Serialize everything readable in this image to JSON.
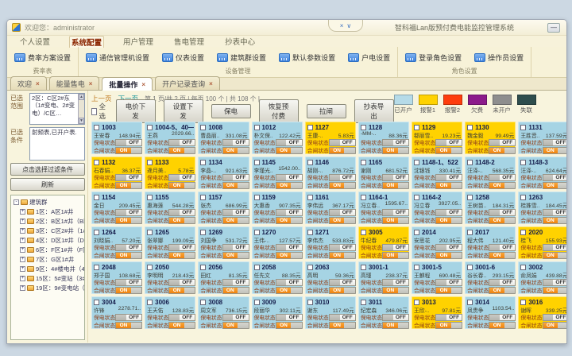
{
  "window": {
    "welcome": "欢迎您：administrator",
    "title": "智科福Lan版预付费电能监控管理系统",
    "minimize": "—",
    "dock_glyphs": [
      "×",
      "∨"
    ]
  },
  "menu": {
    "items": [
      "个人设置",
      "系统配置",
      "用户管理",
      "售电管理",
      "抄表中心"
    ],
    "active_index": 1
  },
  "ribbon": {
    "groups": [
      {
        "label": "费率表",
        "buttons": [
          "费率方案设置"
        ]
      },
      {
        "label": "设备管理",
        "buttons": [
          "通信管理机设置",
          "仪表设置",
          "建筑群设置",
          "默认参数设置",
          "户电设置"
        ]
      },
      {
        "label": "角色设置",
        "buttons": [
          "登录角色设置",
          "操作员设置"
        ]
      }
    ]
  },
  "tabs": {
    "close_glyph": "×",
    "items": [
      {
        "label": "欢迎",
        "active": false
      },
      {
        "label": "能量售电",
        "active": false
      },
      {
        "label": "批量操作",
        "active": true
      },
      {
        "label": "开户记录查询",
        "active": false
      }
    ]
  },
  "sidebar": {
    "range_label": "已选范围",
    "range_text": "2区：C区2#东（1#变电、2#变电）/C区…",
    "condition_label": "已选条件",
    "condition_text": "射频表,已开户表.",
    "filter_button": "点击选择过滤条件",
    "refresh_button": "刷新",
    "scroll_up": "▲",
    "scroll_down": "▼",
    "tree": {
      "root": "建筑群",
      "items": [
        "1区：A区1#井",
        "2区：B区1#井（B区1#…",
        "3区：C区2#井（1#变…",
        "4区：D区1#井（D区1…",
        "6区：F区1#井（F区1#…",
        "7区：G区1#井",
        "9区：4#楼电井（4#楼…",
        "15区：5#变站（3#变…",
        "19区：9#变电站（2#…"
      ]
    }
  },
  "toolbar": {
    "prev": "上一页",
    "next": "下一页",
    "page_info": "第 1 页/共 2 页 | 每页 100 个 | 共 108 个 |",
    "select_all": "全选",
    "buttons": [
      "电价下发",
      "设置下发",
      "保电",
      "恢复预付费",
      "拉闸",
      "抄表导出"
    ]
  },
  "legend": {
    "items": [
      {
        "label": "已开户",
        "color": "#b6dbe8"
      },
      {
        "label": "报警1",
        "color": "#ffd200"
      },
      {
        "label": "报警2",
        "color": "#fe3d0d"
      },
      {
        "label": "欠费",
        "color": "#8b1a8b"
      },
      {
        "label": "未开户",
        "color": "#8e8e8e"
      },
      {
        "label": "失联",
        "color": "#2e4d4d"
      }
    ]
  },
  "card_labels": {
    "keep_power": "保电状态",
    "switch_state": "合闸状态",
    "on": "ON",
    "off": "OFF"
  },
  "status_colors": {
    "open": "#a6d4e4",
    "alarm1": "#ffd200"
  },
  "cards": [
    {
      "room": "1003",
      "name": "王安春",
      "amount": "148.94元",
      "status": "open"
    },
    {
      "room": "1004-5、40—",
      "name": "王燕",
      "amount": "2029.66..",
      "status": "open"
    },
    {
      "room": "1008",
      "name": "曹晶丽..",
      "amount": "331.08元",
      "status": "open"
    },
    {
      "room": "1012",
      "name": "朴文保..",
      "amount": "122.42元",
      "status": "open"
    },
    {
      "room": "1127",
      "name": "王康-..",
      "amount": "5.83元",
      "status": "alarm1"
    },
    {
      "room": "1128",
      "name": "-MM-..",
      "amount": "88.36元",
      "status": "open"
    },
    {
      "room": "1129",
      "name": "郗丽雪..",
      "amount": "19.23元",
      "status": "alarm1"
    },
    {
      "room": "1130",
      "name": "魏金毅",
      "amount": "99.49元",
      "status": "alarm1"
    },
    {
      "room": "1131",
      "name": "王胜音..",
      "amount": "137.59元",
      "status": "open"
    },
    {
      "room": "1132",
      "name": "石春娟..",
      "amount": "36.37元",
      "status": "alarm1"
    },
    {
      "room": "1133",
      "name": "逄月美..",
      "amount": "5.78元",
      "status": "alarm1"
    },
    {
      "room": "1134",
      "name": "李晶-..",
      "amount": "921.63元",
      "status": "open"
    },
    {
      "room": "1145",
      "name": "李瑾光..",
      "amount": "1542.00..",
      "status": "open"
    },
    {
      "room": "1146",
      "name": "胡刚-..",
      "amount": "876.72元",
      "status": "open"
    },
    {
      "room": "1165",
      "name": "谢刚",
      "amount": "681.52元",
      "status": "open"
    },
    {
      "room": "1148-1、522",
      "name": "沈银钱",
      "amount": "330.41元",
      "status": "open"
    },
    {
      "room": "1148-2",
      "name": "汪泽-..",
      "amount": "568.35元",
      "status": "open"
    },
    {
      "room": "1148-3",
      "name": "汪泽-..",
      "amount": "624.64元",
      "status": "open"
    },
    {
      "room": "1154",
      "name": "金日",
      "amount": "209.45元",
      "status": "open"
    },
    {
      "room": "1155",
      "name": "惠海莲",
      "amount": "544.28元",
      "status": "open"
    },
    {
      "room": "1157",
      "name": "张杰",
      "amount": "686.99元",
      "status": "open"
    },
    {
      "room": "1159",
      "name": "大惠香",
      "amount": "907.35元",
      "status": "open"
    },
    {
      "room": "1161",
      "name": "李伟远",
      "amount": "367.17元",
      "status": "open"
    },
    {
      "room": "1164-1",
      "name": "冯立春..",
      "amount": "1595.67..",
      "status": "open"
    },
    {
      "room": "1164-2",
      "name": "冯立春",
      "amount": "3927.05..",
      "status": "open"
    },
    {
      "room": "1258",
      "name": "王树苗..",
      "amount": "184.31元",
      "status": "open"
    },
    {
      "room": "1263",
      "name": "桂姝雪..",
      "amount": "184.45元",
      "status": "open"
    },
    {
      "room": "1264",
      "name": "刘晓娟..",
      "amount": "57.20元",
      "status": "open"
    },
    {
      "room": "1265",
      "name": "张翠娜",
      "amount": "199.09元",
      "status": "open"
    },
    {
      "room": "1269",
      "name": "刘国争",
      "amount": "531.72元",
      "status": "open"
    },
    {
      "room": "1270",
      "name": "王伟-..",
      "amount": "127.57元",
      "status": "open"
    },
    {
      "room": "1271",
      "name": "李伟杰",
      "amount": "533.83元",
      "status": "open"
    },
    {
      "room": "3005",
      "name": "牛纪春",
      "amount": "479.87元",
      "status": "alarm1"
    },
    {
      "room": "2014",
      "name": "安思花",
      "amount": "202.95元",
      "status": "open"
    },
    {
      "room": "2017",
      "name": "程大伟",
      "amount": "121.40元",
      "status": "open"
    },
    {
      "room": "2020",
      "name": "桂飞",
      "amount": "155.93元",
      "status": "alarm1"
    },
    {
      "room": "2048",
      "name": "郑子国",
      "amount": "108.68元",
      "status": "open"
    },
    {
      "room": "2050",
      "name": "李明明",
      "amount": "218.43元",
      "status": "open"
    },
    {
      "room": "2056",
      "name": "田红",
      "amount": "81.35元",
      "status": "open"
    },
    {
      "room": "2058",
      "name": "任先文",
      "amount": "88.35元",
      "status": "open"
    },
    {
      "room": "2063",
      "name": "高明",
      "amount": "59.36元",
      "status": "open"
    },
    {
      "room": "3001-1",
      "name": "高瑾",
      "amount": "238.37元",
      "status": "open"
    },
    {
      "room": "3001-5",
      "name": "王麒程",
      "amount": "690.48元",
      "status": "open"
    },
    {
      "room": "3001-6",
      "name": "谷长春..",
      "amount": "293.15元",
      "status": "open"
    },
    {
      "room": "3002",
      "name": "俞凤娟",
      "amount": "439.88元",
      "status": "open"
    },
    {
      "room": "3004",
      "name": "许锋",
      "amount": "2278.71..",
      "status": "open"
    },
    {
      "room": "3006",
      "name": "王天佑",
      "amount": "128.83元",
      "status": "open"
    },
    {
      "room": "3008",
      "name": "周文军",
      "amount": "736.15元",
      "status": "open"
    },
    {
      "room": "3009",
      "name": "段丽华",
      "amount": "302.11元",
      "status": "open"
    },
    {
      "room": "3010",
      "name": "谢东",
      "amount": "117.49元",
      "status": "open"
    },
    {
      "room": "3011",
      "name": "纪宏森",
      "amount": "346.06元",
      "status": "open"
    },
    {
      "room": "3013",
      "name": "王欣-..",
      "amount": "97.81元",
      "status": "alarm1"
    },
    {
      "room": "3014",
      "name": "凤贵争",
      "amount": "1103.54..",
      "status": "open"
    },
    {
      "room": "3016",
      "name": "谢晖",
      "amount": "339.25元",
      "status": "alarm1"
    }
  ]
}
